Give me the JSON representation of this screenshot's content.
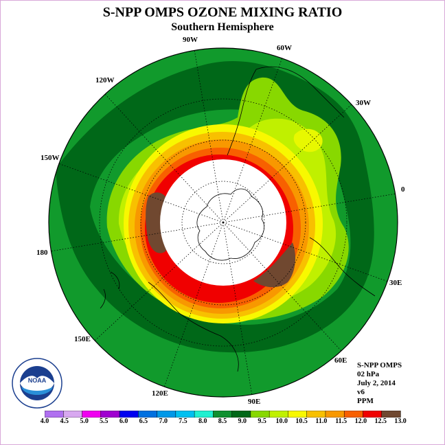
{
  "header": {
    "title": "S-NPP OMPS OZONE MIXING RATIO",
    "subtitle": "Southern Hemisphere"
  },
  "longitude_labels": [
    "90W",
    "60W",
    "30W",
    "0",
    "30E",
    "60E",
    "90E",
    "120E",
    "150E",
    "180",
    "150W",
    "120W"
  ],
  "info": {
    "instrument": "S-NPP OMPS",
    "pressure": "02 hPa",
    "date": "July 2, 2014",
    "version": "v6",
    "units": "PPM"
  },
  "logo": {
    "text": "NOAA",
    "ring_text": "NATIONAL OCEANIC AND ATMOSPHERIC ADMINISTRATION · U.S. DEPARTMENT OF COMMERCE"
  },
  "colorbar": {
    "labels": [
      "4.0",
      "4.5",
      "5.0",
      "5.5",
      "6.0",
      "6.5",
      "7.0",
      "7.5",
      "8.0",
      "8.5",
      "9.0",
      "9.5",
      "10.0",
      "10.5",
      "11.0",
      "11.5",
      "12.0",
      "12.5",
      "13.0"
    ],
    "colors": [
      "#b070f0",
      "#d8a8f0",
      "#f000f0",
      "#a000d0",
      "#0000f0",
      "#0070e0",
      "#0098e8",
      "#00c0f0",
      "#20f0d0",
      "#109030",
      "#006818",
      "#88d800",
      "#c0f000",
      "#f8f800",
      "#f8c000",
      "#f89800",
      "#f86000",
      "#f00000",
      "#704830"
    ]
  },
  "colors": {
    "background_ring": "#119a2c",
    "dark_green": "#006818",
    "no_data": "#ffffff"
  }
}
